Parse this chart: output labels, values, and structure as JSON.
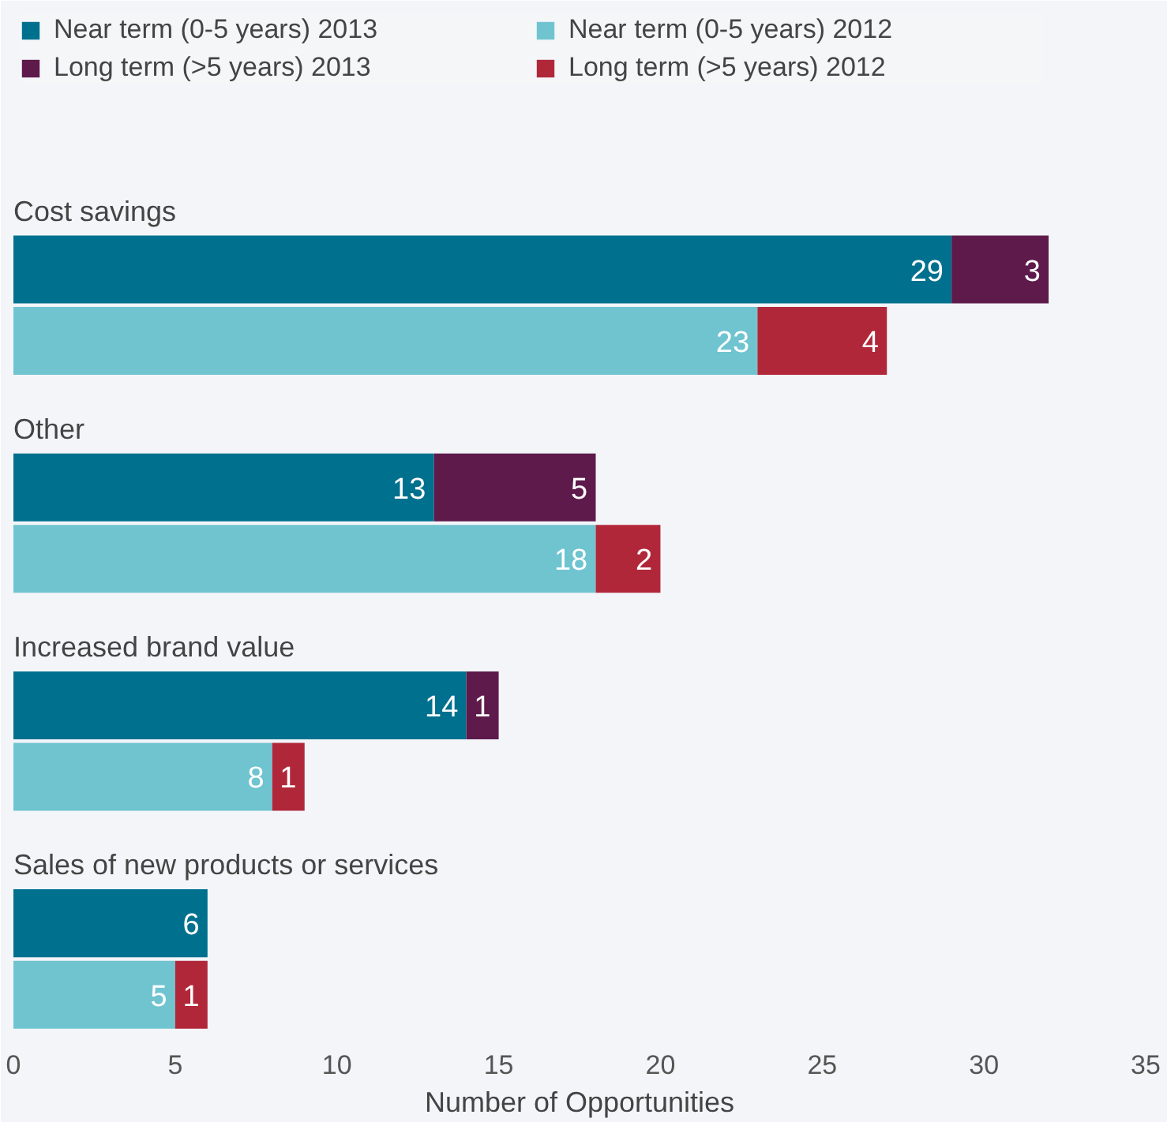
{
  "chart_data": {
    "type": "bar",
    "orientation": "horizontal",
    "stacked": true,
    "categories": [
      "Cost savings",
      null,
      "Other",
      null,
      "Increased brand value",
      null,
      "Sales of new products or services",
      null
    ],
    "series": [
      {
        "name": "Near term (0-5 years) 2013",
        "color": "#00708f",
        "values": [
          29,
          null,
          13,
          null,
          14,
          null,
          6,
          null
        ]
      },
      {
        "name": "Long term (>5 years) 2013",
        "color": "#5e1a4b",
        "values": [
          3,
          null,
          5,
          null,
          1,
          null,
          null,
          null
        ]
      },
      {
        "name": "Near term (0-5 years) 2012",
        "color": "#6fc4d0",
        "values": [
          null,
          23,
          null,
          18,
          null,
          8,
          null,
          5
        ]
      },
      {
        "name": "Long term (>5 years) 2012",
        "color": "#b1273a",
        "values": [
          null,
          4,
          null,
          2,
          null,
          1,
          null,
          1
        ]
      }
    ],
    "xlim": [
      0,
      35
    ],
    "xticks": [
      0,
      5,
      10,
      15,
      20,
      25,
      30,
      35
    ],
    "xlabel": "Number of Opportunities",
    "data_labels": true,
    "grid": false,
    "legend": "top left"
  }
}
